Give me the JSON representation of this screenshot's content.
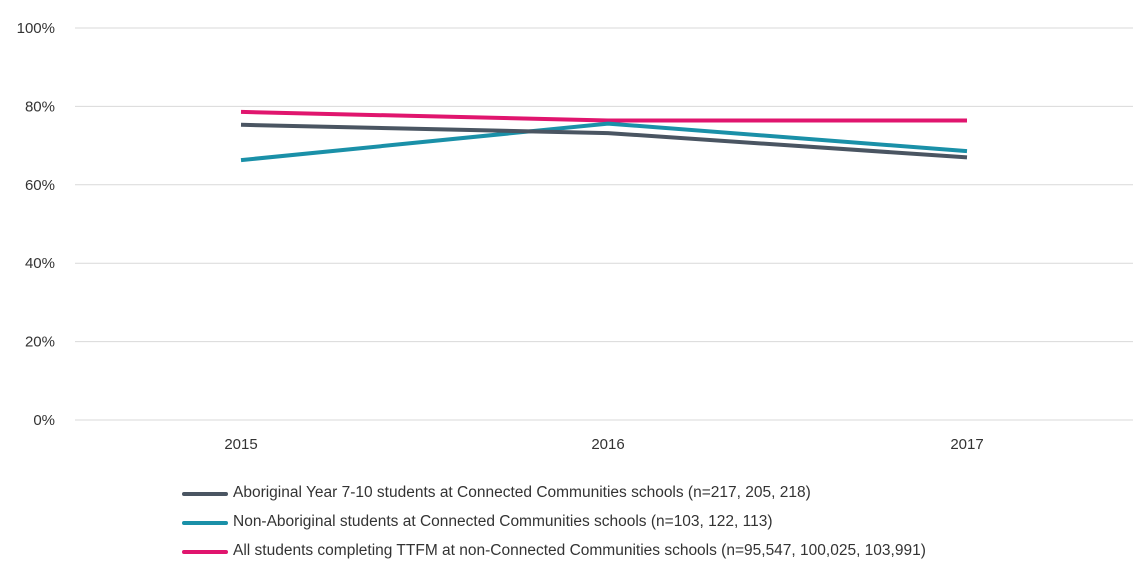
{
  "chart_data": {
    "type": "line",
    "categories": [
      "2015",
      "2016",
      "2017"
    ],
    "y_ticks": [
      "0%",
      "20%",
      "40%",
      "60%",
      "80%",
      "100%"
    ],
    "ylim": [
      0,
      100
    ],
    "grid": true,
    "legend_position": "bottom",
    "series": [
      {
        "name": "Aboriginal Year 7-10 students at Connected Communities schools (n=217, 205, 218)",
        "values": [
          75.3,
          73.2,
          67.0
        ],
        "color": "#4a5562"
      },
      {
        "name": "Non-Aboriginal students at Connected Communities schools (n=103, 122, 113)",
        "values": [
          66.3,
          75.6,
          68.6
        ],
        "color": "#1a90a8"
      },
      {
        "name": "All students completing TTFM at non-Connected Communities schools (n=95,547, 100,025, 103,991)",
        "values": [
          78.6,
          76.4,
          76.4
        ],
        "color": "#e0156e"
      }
    ]
  }
}
